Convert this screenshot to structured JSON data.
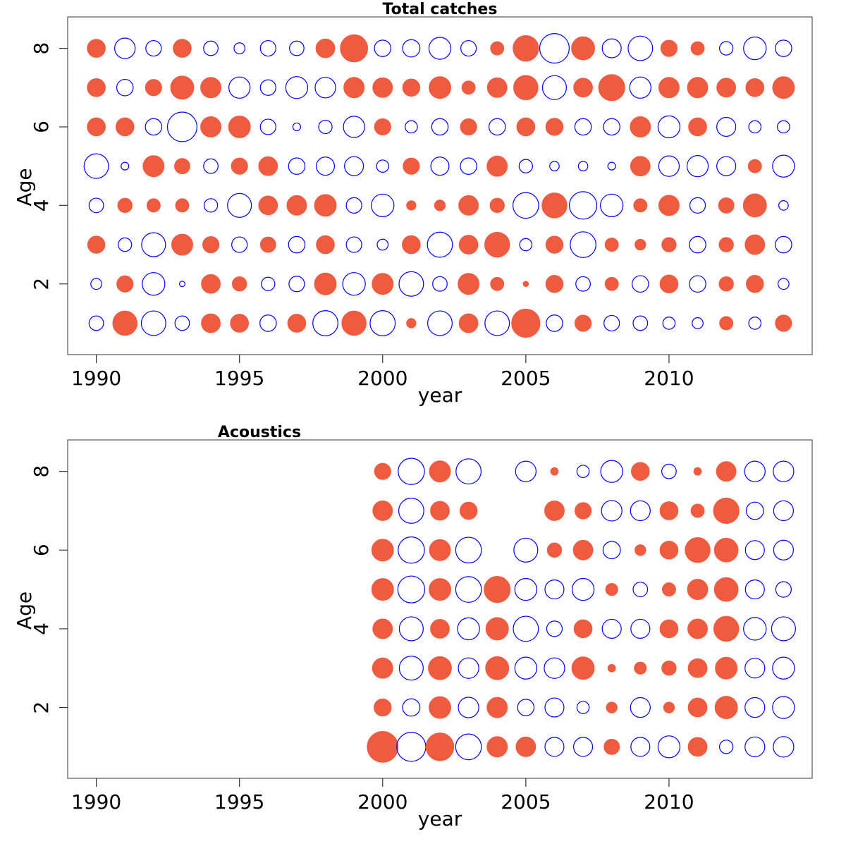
{
  "chart_data": [
    {
      "type": "scatter",
      "subtype": "bubble",
      "title": "Total catches",
      "xlabel": "year",
      "ylabel": "Age",
      "xlim": [
        1989,
        2015
      ],
      "ylim": [
        0.2,
        8.8
      ],
      "x_ticks": [
        1990,
        1995,
        2000,
        2005,
        2010
      ],
      "y_ticks": [
        2,
        4,
        6,
        8
      ],
      "legend": "none",
      "colors": {
        "positive": "#f05a3f",
        "negative": "#0000ff"
      },
      "years": [
        1990,
        1991,
        1992,
        1993,
        1994,
        1995,
        1996,
        1997,
        1998,
        1999,
        2000,
        2001,
        2002,
        2003,
        2004,
        2005,
        2006,
        2007,
        2008,
        2009,
        2010,
        2011,
        2012,
        2013,
        2014
      ],
      "ages": [
        1,
        2,
        3,
        4,
        5,
        6,
        7,
        8
      ],
      "residuals": [
        [
          -0.35,
          1.0,
          -1.0,
          -0.35,
          0.6,
          0.55,
          -0.45,
          0.55,
          -1.05,
          1.0,
          -1.05,
          0.15,
          -1.0,
          0.6,
          -1.0,
          1.35,
          -0.45,
          0.45,
          -0.4,
          -0.35,
          -0.25,
          -0.2,
          0.3,
          -0.25,
          0.45
        ],
        [
          -0.2,
          0.45,
          -0.85,
          -0.05,
          0.6,
          0.35,
          -0.3,
          -0.4,
          0.8,
          -0.85,
          0.75,
          -1.0,
          -0.35,
          0.75,
          0.3,
          0.05,
          0.5,
          -0.35,
          0.3,
          -0.45,
          0.55,
          -0.45,
          0.35,
          0.5,
          -0.2
        ],
        [
          0.5,
          -0.3,
          -0.95,
          0.75,
          0.45,
          -0.4,
          0.4,
          -0.45,
          0.55,
          -0.4,
          -0.2,
          0.55,
          -1.05,
          0.6,
          1.05,
          -0.25,
          0.5,
          -1.1,
          0.3,
          0.2,
          0.35,
          -0.45,
          0.35,
          0.65,
          -0.45
        ],
        [
          -0.35,
          0.35,
          0.3,
          0.3,
          -0.3,
          -0.95,
          0.6,
          0.65,
          0.8,
          -0.4,
          -0.85,
          0.15,
          0.2,
          0.65,
          0.35,
          -1.1,
          1.05,
          -1.25,
          -0.85,
          0.3,
          0.7,
          -0.4,
          0.4,
          0.9,
          -0.15
        ],
        [
          -1.0,
          -0.1,
          0.75,
          0.4,
          -0.35,
          0.45,
          0.6,
          -0.45,
          -0.55,
          -0.6,
          -0.25,
          0.45,
          -0.55,
          -0.45,
          0.7,
          -0.3,
          -0.15,
          -0.15,
          -0.1,
          0.65,
          -0.7,
          -0.75,
          -0.6,
          0.3,
          -0.8
        ],
        [
          0.55,
          0.55,
          -0.45,
          -1.45,
          0.7,
          0.8,
          -0.4,
          -0.1,
          -0.3,
          -0.75,
          0.45,
          -0.25,
          -0.45,
          0.45,
          -0.45,
          0.55,
          0.5,
          -0.45,
          -0.45,
          0.7,
          -0.8,
          0.55,
          -0.6,
          -0.25,
          -0.25
        ],
        [
          0.55,
          -0.45,
          0.45,
          0.9,
          0.7,
          -0.75,
          -0.4,
          -0.8,
          -0.7,
          0.7,
          0.65,
          0.5,
          0.8,
          0.3,
          0.65,
          1.0,
          -0.95,
          0.6,
          1.15,
          -0.75,
          0.7,
          0.7,
          0.6,
          0.55,
          0.8
        ],
        [
          0.55,
          -0.7,
          -0.4,
          0.55,
          -0.35,
          -0.2,
          -0.4,
          -0.35,
          0.6,
          1.25,
          -0.45,
          -0.5,
          -0.8,
          -0.4,
          0.3,
          1.1,
          -1.45,
          0.9,
          -0.6,
          -1.0,
          0.45,
          0.3,
          -0.3,
          -0.85,
          -0.45
        ]
      ]
    },
    {
      "type": "scatter",
      "subtype": "bubble",
      "title": "Acoustics",
      "xlabel": "year",
      "ylabel": "Age",
      "xlim": [
        1989,
        2015
      ],
      "ylim": [
        0.2,
        8.8
      ],
      "x_ticks": [
        1990,
        1995,
        2000,
        2005,
        2010
      ],
      "y_ticks": [
        2,
        4,
        6,
        8
      ],
      "legend": "none",
      "colors": {
        "positive": "#f05a3f",
        "negative": "#0000ff"
      },
      "years": [
        2000,
        2001,
        2002,
        2003,
        2004,
        2005,
        2006,
        2007,
        2008,
        2009,
        2010,
        2011,
        2012,
        2013,
        2014
      ],
      "ages": [
        1,
        2,
        3,
        4,
        5,
        6,
        7,
        8
      ],
      "residuals": [
        [
          1.6,
          -1.4,
          1.3,
          -1.1,
          0.7,
          0.65,
          -0.6,
          -0.6,
          0.4,
          -0.6,
          -0.8,
          0.6,
          -0.3,
          -0.65,
          -0.7
        ],
        [
          0.5,
          -0.5,
          0.8,
          -0.7,
          0.7,
          -0.45,
          -0.6,
          -0.25,
          0.2,
          -0.65,
          0.2,
          0.6,
          0.85,
          -0.65,
          -0.8
        ],
        [
          0.7,
          -0.95,
          0.9,
          -0.7,
          0.9,
          -0.8,
          -0.7,
          0.85,
          0.1,
          0.25,
          0.35,
          0.6,
          0.8,
          -0.65,
          -0.8
        ],
        [
          0.65,
          -0.95,
          0.6,
          -0.8,
          0.85,
          -1.05,
          -0.4,
          0.55,
          -0.6,
          -0.6,
          0.55,
          0.65,
          1.05,
          -0.85,
          -0.95
        ],
        [
          0.8,
          -1.2,
          0.8,
          -1.1,
          1.15,
          -0.8,
          -0.6,
          -0.8,
          0.25,
          -0.35,
          0.3,
          0.7,
          0.95,
          -0.6,
          -0.4
        ],
        [
          0.8,
          -1.15,
          0.75,
          -1.1,
          0.0,
          -0.95,
          0.35,
          0.65,
          -0.5,
          0.2,
          0.55,
          1.05,
          0.95,
          -0.6,
          -0.65
        ],
        [
          0.65,
          -1.05,
          0.6,
          0.5,
          0.0,
          0.0,
          0.65,
          0.45,
          -0.7,
          -0.65,
          0.55,
          0.3,
          1.1,
          -0.5,
          -0.65
        ],
        [
          0.45,
          -1.15,
          0.75,
          -1.05,
          0.0,
          -0.7,
          0.1,
          -0.25,
          -0.8,
          0.55,
          -0.35,
          0.1,
          0.65,
          -0.7,
          -0.7
        ]
      ]
    }
  ]
}
